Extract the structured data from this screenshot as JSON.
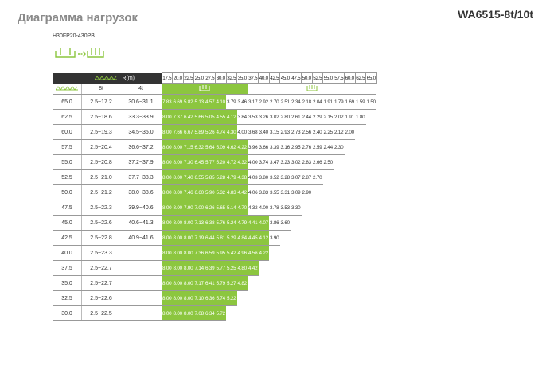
{
  "title": "Диаграмма нагрузок",
  "model": "WA6515-8t/10t",
  "subtitle": "H30FP20-430PB",
  "colors": {
    "green": "#8cc63f",
    "header": "#333333",
    "title_gray": "#8a8a8a"
  },
  "table": {
    "r_label": "R(m)",
    "radii": [
      "17.5",
      "20.0",
      "22.5",
      "25.0",
      "27.5",
      "30.0",
      "32.5",
      "35.0",
      "37.5",
      "40.0",
      "42.5",
      "45.0",
      "47.5",
      "50.0",
      "52.5",
      "55.0",
      "57.5",
      "60.0",
      "62.5",
      "65.0"
    ],
    "col_8t": "8t",
    "col_4t": "4t",
    "rows": [
      {
        "a": "65.0",
        "r8": "2.5~17.2",
        "r4": "30.6~31.1",
        "g": 6,
        "vals": [
          "7.83",
          "6.69",
          "5.82",
          "5.13",
          "4.57",
          "4.10",
          "3.79",
          "3.46",
          "3.17",
          "2.92",
          "2.70",
          "2.51",
          "2.34",
          "2.18",
          "2.04",
          "1.91",
          "1.79",
          "1.69",
          "1.59",
          "1.50"
        ]
      },
      {
        "a": "62.5",
        "r8": "2.5~18.6",
        "r4": "33.3~33.9",
        "g": 7,
        "vals": [
          "8.00",
          "7.37",
          "6.42",
          "5.66",
          "5.05",
          "4.55",
          "4.12",
          "3.84",
          "3.53",
          "3.26",
          "3.02",
          "2.80",
          "2.61",
          "2.44",
          "2.29",
          "2.15",
          "2.02",
          "1.91",
          "1.80"
        ]
      },
      {
        "a": "60.0",
        "r8": "2.5~19.3",
        "r4": "34.5~35.0",
        "g": 7,
        "vals": [
          "8.00",
          "7.66",
          "6.67",
          "5.89",
          "5.26",
          "4.74",
          "4.30",
          "4.00",
          "3.68",
          "3.40",
          "3.15",
          "2.93",
          "2.73",
          "2.56",
          "2.40",
          "2.25",
          "2.12",
          "2.00"
        ]
      },
      {
        "a": "57.5",
        "r8": "2.5~20.4",
        "r4": "36.6~37.2",
        "g": 8,
        "vals": [
          "8.00",
          "8.00",
          "7.15",
          "6.32",
          "5.64",
          "5.09",
          "4.62",
          "4.22",
          "3.96",
          "3.66",
          "3.39",
          "3.16",
          "2.95",
          "2.76",
          "2.59",
          "2.44",
          "2.30"
        ]
      },
      {
        "a": "55.0",
        "r8": "2.5~20.8",
        "r4": "37.2~37.9",
        "g": 8,
        "vals": [
          "8.00",
          "8.00",
          "7.30",
          "6.45",
          "5.77",
          "5.20",
          "4.72",
          "4.32",
          "4.00",
          "3.74",
          "3.47",
          "3.23",
          "3.02",
          "2.83",
          "2.66",
          "2.50"
        ]
      },
      {
        "a": "52.5",
        "r8": "2.5~21.0",
        "r4": "37.7~38.3",
        "g": 8,
        "vals": [
          "8.00",
          "8.00",
          "7.40",
          "6.55",
          "5.85",
          "5.28",
          "4.79",
          "4.38",
          "4.03",
          "3.80",
          "3.52",
          "3.28",
          "3.07",
          "2.87",
          "2.70"
        ]
      },
      {
        "a": "50.0",
        "r8": "2.5~21.2",
        "r4": "38.0~38.6",
        "g": 8,
        "vals": [
          "8.00",
          "8.00",
          "7.46",
          "6.60",
          "5.90",
          "5.32",
          "4.83",
          "4.42",
          "4.06",
          "3.83",
          "3.55",
          "3.31",
          "3.09",
          "2.90"
        ]
      },
      {
        "a": "47.5",
        "r8": "2.5~22.3",
        "r4": "39.9~40.6",
        "g": 8,
        "vals": [
          "8.00",
          "8.00",
          "7.90",
          "7.00",
          "6.26",
          "5.65",
          "5.14",
          "4.70",
          "4.32",
          "4.00",
          "3.78",
          "3.53",
          "3.30"
        ]
      },
      {
        "a": "45.0",
        "r8": "2.5~22.6",
        "r4": "40.6~41.3",
        "g": 10,
        "vals": [
          "8.00",
          "8.00",
          "8.00",
          "7.13",
          "6.38",
          "5.76",
          "5.24",
          "4.79",
          "4.41",
          "4.07",
          "3.86",
          "3.60"
        ]
      },
      {
        "a": "42.5",
        "r8": "2.5~22.8",
        "r4": "40.9~41.6",
        "g": 10,
        "vals": [
          "8.00",
          "8.00",
          "8.00",
          "7.19",
          "6.44",
          "5.81",
          "5.29",
          "4.84",
          "4.45",
          "4.12",
          "3.90"
        ]
      },
      {
        "a": "40.0",
        "r8": "2.5~23.3",
        "r4": "",
        "g": 10,
        "vals": [
          "8.00",
          "8.00",
          "8.00",
          "7.36",
          "6.59",
          "5.95",
          "5.42",
          "4.96",
          "4.56",
          "4.22"
        ]
      },
      {
        "a": "37.5",
        "r8": "2.5~22.7",
        "r4": "",
        "g": 9,
        "vals": [
          "8.00",
          "8.00",
          "8.00",
          "7.14",
          "6.39",
          "5.77",
          "5.25",
          "4.80",
          "4.42"
        ]
      },
      {
        "a": "35.0",
        "r8": "2.5~22.7",
        "r4": "",
        "g": 8,
        "vals": [
          "8.00",
          "8.00",
          "8.00",
          "7.17",
          "6.41",
          "5.79",
          "5.27",
          "4.82"
        ]
      },
      {
        "a": "32.5",
        "r8": "2.5~22.6",
        "r4": "",
        "g": 7,
        "vals": [
          "8.00",
          "8.00",
          "8.00",
          "7.10",
          "6.36",
          "5.74",
          "5.22"
        ]
      },
      {
        "a": "30.0",
        "r8": "2.5~22.5",
        "r4": "",
        "g": 6,
        "vals": [
          "8.00",
          "8.00",
          "8.00",
          "7.08",
          "6.34",
          "5.72"
        ]
      }
    ]
  }
}
